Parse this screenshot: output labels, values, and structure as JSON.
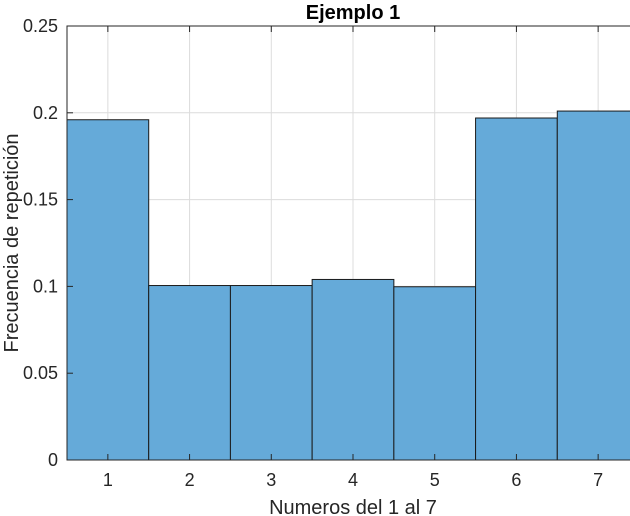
{
  "chart_data": {
    "type": "bar",
    "title": "Ejemplo 1",
    "xlabel": "Numeros del 1 al 7",
    "ylabel": "Frecuencia de repetición",
    "categories": [
      "1",
      "2",
      "3",
      "4",
      "5",
      "6",
      "7"
    ],
    "values": [
      0.196,
      0.1005,
      0.1005,
      0.104,
      0.0998,
      0.197,
      0.201
    ],
    "xlim": [
      0.5,
      7.5
    ],
    "ylim": [
      0,
      0.25
    ],
    "yticks": [
      0,
      0.05,
      0.1,
      0.15,
      0.2,
      0.25
    ],
    "ytick_labels": [
      "0",
      "0.05",
      "0.1",
      "0.15",
      "0.2",
      "0.25"
    ],
    "grid": true,
    "bar_color": "#65aad9",
    "edge_color": "#1a1a1a"
  }
}
